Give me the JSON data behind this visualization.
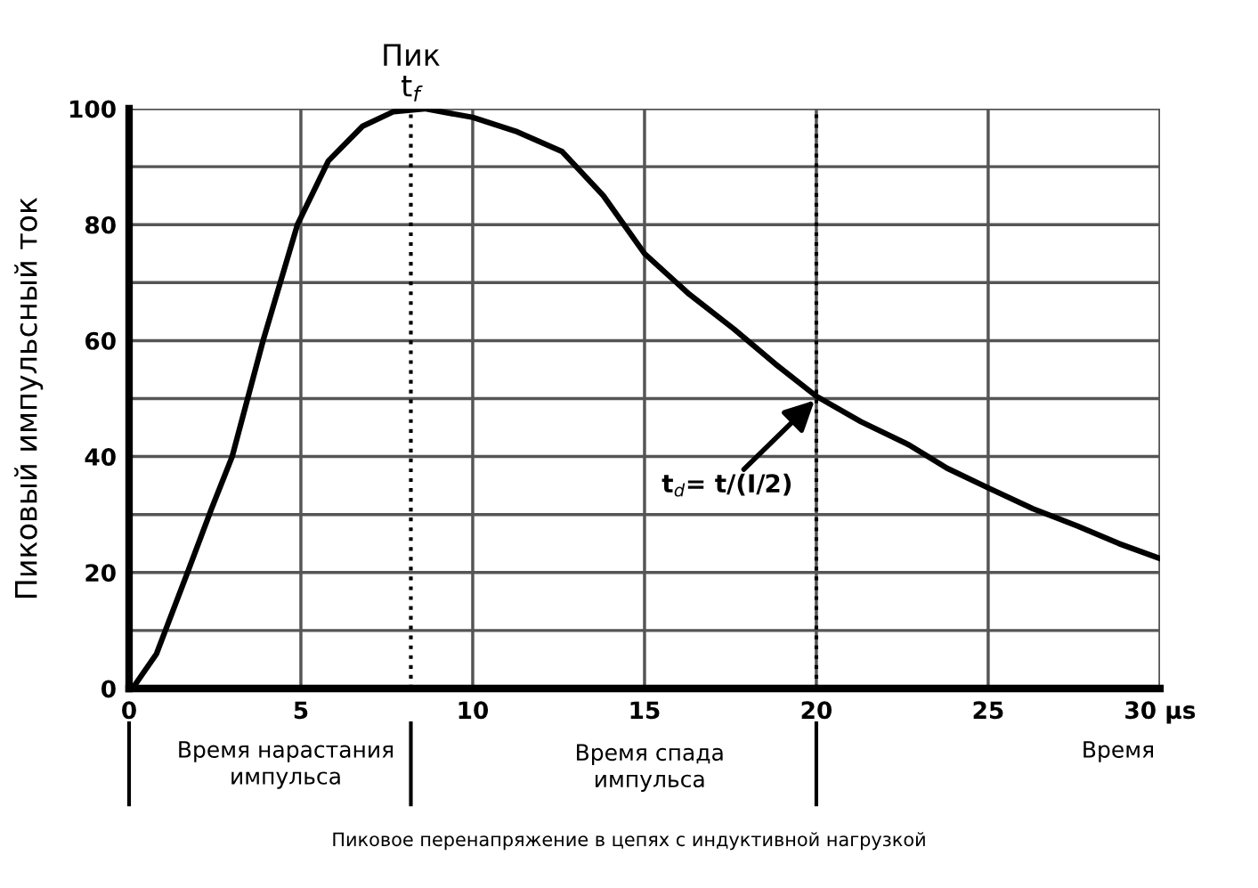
{
  "chart_data": {
    "type": "line",
    "ylabel": "Пиковый импульсный ток",
    "xlabel": "Время",
    "x": [
      0.1,
      0.8,
      1.7,
      2.4,
      3.0,
      3.9,
      4.9,
      5.8,
      6.8,
      7.7,
      8.6,
      10,
      11.3,
      12.6,
      13.8,
      15,
      16.3,
      17.6,
      18.8,
      20,
      21.3,
      22.7,
      23.8,
      25,
      26.3,
      27.6,
      28.8,
      30
    ],
    "series": [
      {
        "color": "#000000",
        "values": [
          0,
          6,
          20,
          31,
          40,
          60,
          80,
          91,
          97,
          99.5,
          100,
          98.5,
          96,
          92.6,
          85,
          75,
          68,
          62,
          56,
          50.4,
          46,
          42,
          38,
          34.6,
          31,
          28,
          25,
          22.4
        ]
      }
    ],
    "xlim": [
      0,
      30
    ],
    "ylim": [
      0,
      100
    ],
    "xticks": [
      0,
      5,
      10,
      15,
      20,
      25,
      {
        "value": 30,
        "label": "30 µs"
      }
    ],
    "yticks": [
      0,
      {
        "value": 10,
        "label": null
      },
      20,
      {
        "value": 30,
        "label": null
      },
      40,
      {
        "value": 50,
        "label": null
      },
      60,
      {
        "value": 70,
        "label": null
      },
      80,
      {
        "value": 90,
        "label": null
      },
      100
    ],
    "grid": true,
    "legend": false,
    "marker": "none",
    "line_style": "solid",
    "ref_lines": [
      {
        "axis": "x",
        "value": 8.2,
        "label": "Пик\nt$_{f}$",
        "line_style": "dotted",
        "color": "#000000"
      },
      {
        "axis": "x",
        "value": 20,
        "label": null,
        "line_style": "dotted",
        "color": "#000000"
      }
    ],
    "annotations": [
      {
        "text": "t$_{d}$= t/(I/2)",
        "x": 20,
        "y": 50
      },
      "Время нарастания\nимпульса",
      "Время спада\nимпульса",
      "Пиковое перенапряжение в цепях с индуктивной нагрузкой"
    ]
  }
}
